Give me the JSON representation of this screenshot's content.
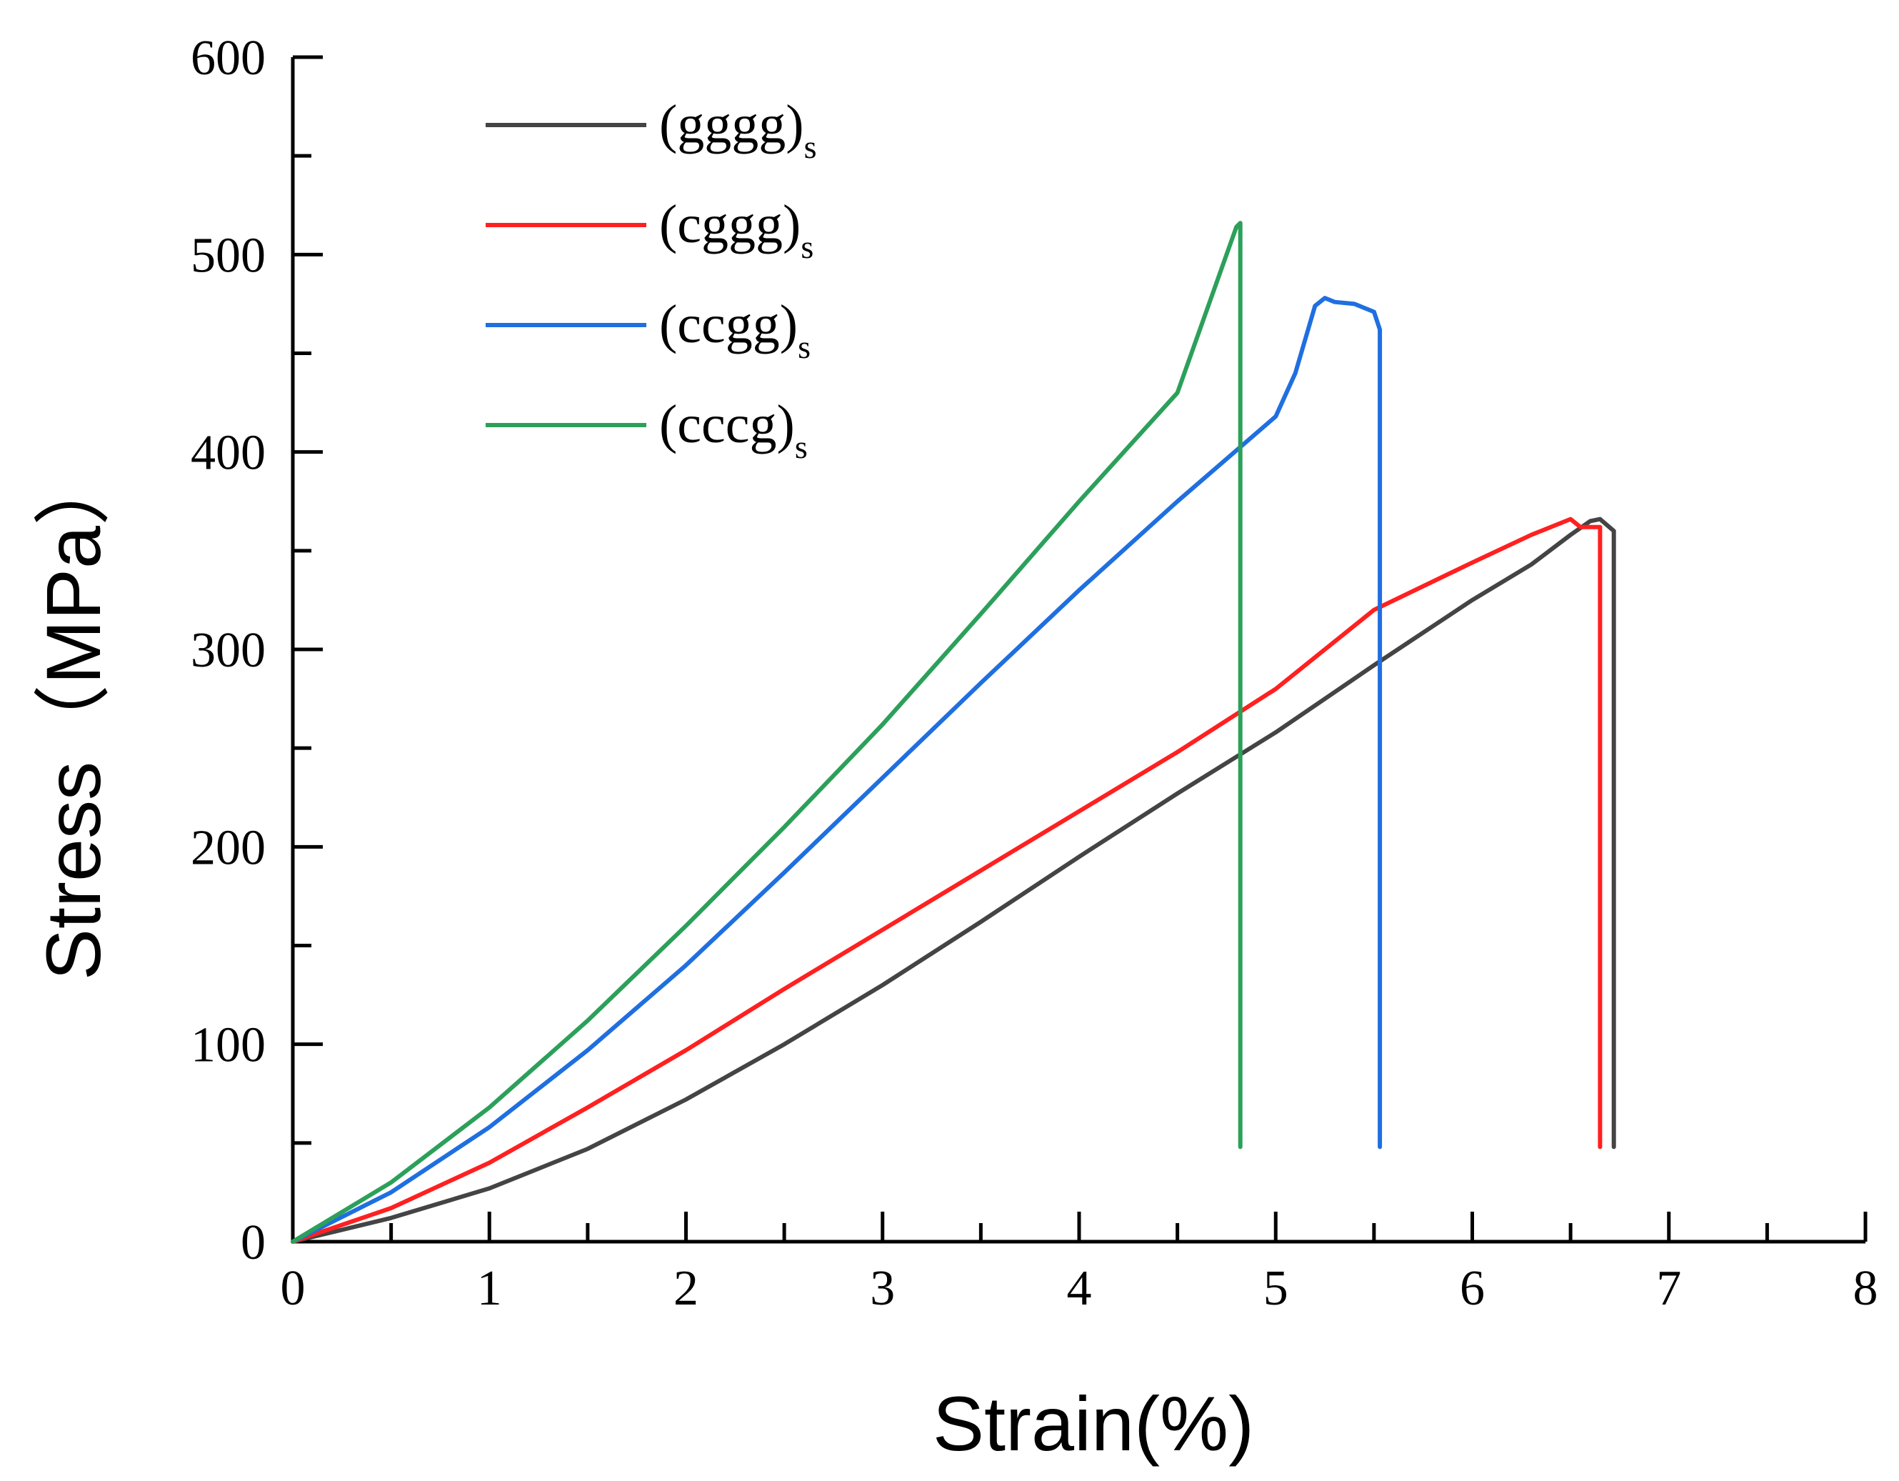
{
  "chart_data": {
    "type": "line",
    "title": "",
    "xlabel": "Strain(%)",
    "ylabel": "Stress（MPa）",
    "xlim": [
      0,
      8
    ],
    "ylim": [
      0,
      600
    ],
    "xticks": [
      "0",
      "1",
      "2",
      "3",
      "4",
      "5",
      "6",
      "7",
      "8"
    ],
    "yticks": [
      "0",
      "100",
      "200",
      "300",
      "400",
      "500",
      "600"
    ],
    "legend_position": "top-left",
    "series": [
      {
        "name": "(gggg)s",
        "label_main": "(gggg)",
        "label_sub": "s",
        "color": "#444444",
        "x": [
          0,
          0.5,
          1,
          1.5,
          2,
          2.5,
          3,
          3.5,
          4,
          4.5,
          5,
          5.5,
          6,
          6.3,
          6.5,
          6.6,
          6.65,
          6.72,
          6.72
        ],
        "y": [
          0,
          12,
          27,
          47,
          72,
          100,
          130,
          162,
          195,
          227,
          258,
          292,
          325,
          343,
          358,
          365,
          366,
          360,
          48
        ]
      },
      {
        "name": "(cggg)s",
        "label_main": "(cggg)",
        "label_sub": "s",
        "color": "#ff2020",
        "x": [
          0,
          0.5,
          1,
          1.5,
          2,
          2.5,
          3,
          3.5,
          4,
          4.5,
          5,
          5.5,
          6,
          6.3,
          6.5,
          6.55,
          6.65,
          6.65
        ],
        "y": [
          0,
          17,
          40,
          68,
          97,
          128,
          158,
          188,
          218,
          248,
          280,
          320,
          344,
          358,
          366,
          362,
          362,
          48
        ]
      },
      {
        "name": "(ccgg)s",
        "label_main": "(ccgg)",
        "label_sub": "s",
        "color": "#1f6fe0",
        "x": [
          0,
          0.5,
          1,
          1.5,
          2,
          2.5,
          3,
          3.5,
          4,
          4.5,
          5,
          5.1,
          5.2,
          5.25,
          5.3,
          5.4,
          5.5,
          5.53,
          5.53
        ],
        "y": [
          0,
          25,
          58,
          97,
          140,
          187,
          235,
          283,
          330,
          375,
          418,
          440,
          474,
          478,
          476,
          475,
          471,
          462,
          48
        ]
      },
      {
        "name": "(cccg)s",
        "label_main": "(cccg)",
        "label_sub": "s",
        "color": "#2ca05a",
        "x": [
          0,
          0.5,
          1,
          1.5,
          2,
          2.5,
          3,
          3.5,
          4,
          4.5,
          4.8,
          4.82,
          4.82
        ],
        "y": [
          0,
          30,
          68,
          112,
          160,
          210,
          262,
          318,
          375,
          430,
          514,
          516,
          48
        ]
      }
    ]
  }
}
